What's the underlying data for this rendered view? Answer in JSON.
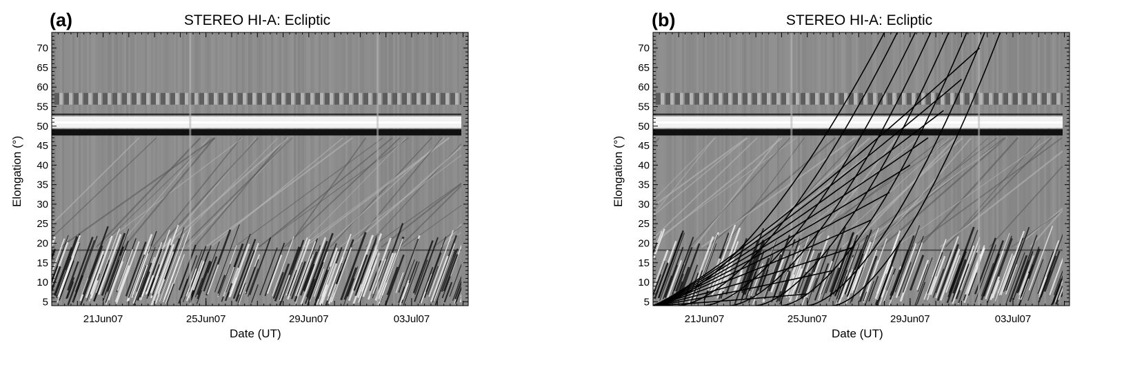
{
  "chart_data": [
    {
      "panel": "(a)",
      "type": "heatmap",
      "title": "STEREO HI-A: Ecliptic",
      "xlabel": "Date (UT)",
      "ylabel": "Elongation (°)",
      "xticks": [
        "21Jun07",
        "25Jun07",
        "29Jun07",
        "03Jul07"
      ],
      "xtick_days": [
        21,
        25,
        29,
        33
      ],
      "xlim_days": [
        19.0,
        35.2
      ],
      "yticks": [
        5,
        10,
        15,
        20,
        25,
        30,
        35,
        40,
        45,
        50,
        55,
        60,
        65,
        70
      ],
      "ylim": [
        4,
        74
      ],
      "grid": false,
      "colors": {
        "background": "#8c8c8c",
        "dark": "#111111",
        "light": "#f2f2f2"
      },
      "overlay_tracks": []
    },
    {
      "panel": "(b)",
      "type": "heatmap",
      "title": "STEREO HI-A: Ecliptic",
      "xlabel": "Date (UT)",
      "ylabel": "Elongation (°)",
      "xticks": [
        "21Jun07",
        "25Jun07",
        "29Jun07",
        "03Jul07"
      ],
      "xtick_days": [
        21,
        25,
        29,
        33
      ],
      "xlim_days": [
        19.0,
        35.2
      ],
      "yticks": [
        5,
        10,
        15,
        20,
        25,
        30,
        35,
        40,
        45,
        50,
        55,
        60,
        65,
        70
      ],
      "ylim": [
        4,
        74
      ],
      "grid": false,
      "colors": {
        "background": "#8c8c8c",
        "dark": "#111111",
        "light": "#f2f2f2",
        "tracks": "#000000"
      },
      "overlay_tracks": [
        {
          "family": "radial",
          "launch_day": 19.0,
          "end_day": 28.0,
          "end_elong": 74
        },
        {
          "family": "radial",
          "launch_day": 20.0,
          "end_day": 28.5,
          "end_elong": 74
        },
        {
          "family": "radial",
          "launch_day": 21.0,
          "end_day": 29.2,
          "end_elong": 74
        },
        {
          "family": "radial",
          "launch_day": 22.0,
          "end_day": 29.8,
          "end_elong": 74
        },
        {
          "family": "radial",
          "launch_day": 23.0,
          "end_day": 30.5,
          "end_elong": 74
        },
        {
          "family": "radial",
          "launch_day": 24.0,
          "end_day": 31.2,
          "end_elong": 74
        },
        {
          "family": "radial",
          "launch_day": 25.0,
          "end_day": 31.9,
          "end_elong": 74
        },
        {
          "family": "radial",
          "launch_day": 26.0,
          "end_day": 32.5,
          "end_elong": 74
        },
        {
          "family": "angle",
          "start_day": 19.0,
          "end_day": 25.0,
          "end_elong": 7
        },
        {
          "family": "angle",
          "start_day": 19.0,
          "end_day": 26.0,
          "end_elong": 13
        },
        {
          "family": "angle",
          "start_day": 19.0,
          "end_day": 26.8,
          "end_elong": 19
        },
        {
          "family": "angle",
          "start_day": 19.0,
          "end_day": 27.5,
          "end_elong": 26
        },
        {
          "family": "angle",
          "start_day": 19.0,
          "end_day": 28.2,
          "end_elong": 33
        },
        {
          "family": "angle",
          "start_day": 19.0,
          "end_day": 29.0,
          "end_elong": 40
        },
        {
          "family": "angle",
          "start_day": 19.0,
          "end_day": 29.7,
          "end_elong": 47
        },
        {
          "family": "angle",
          "start_day": 19.0,
          "end_day": 30.3,
          "end_elong": 54
        },
        {
          "family": "angle",
          "start_day": 19.0,
          "end_day": 31.0,
          "end_elong": 62
        },
        {
          "family": "angle",
          "start_day": 19.0,
          "end_day": 31.7,
          "end_elong": 70
        }
      ]
    }
  ]
}
